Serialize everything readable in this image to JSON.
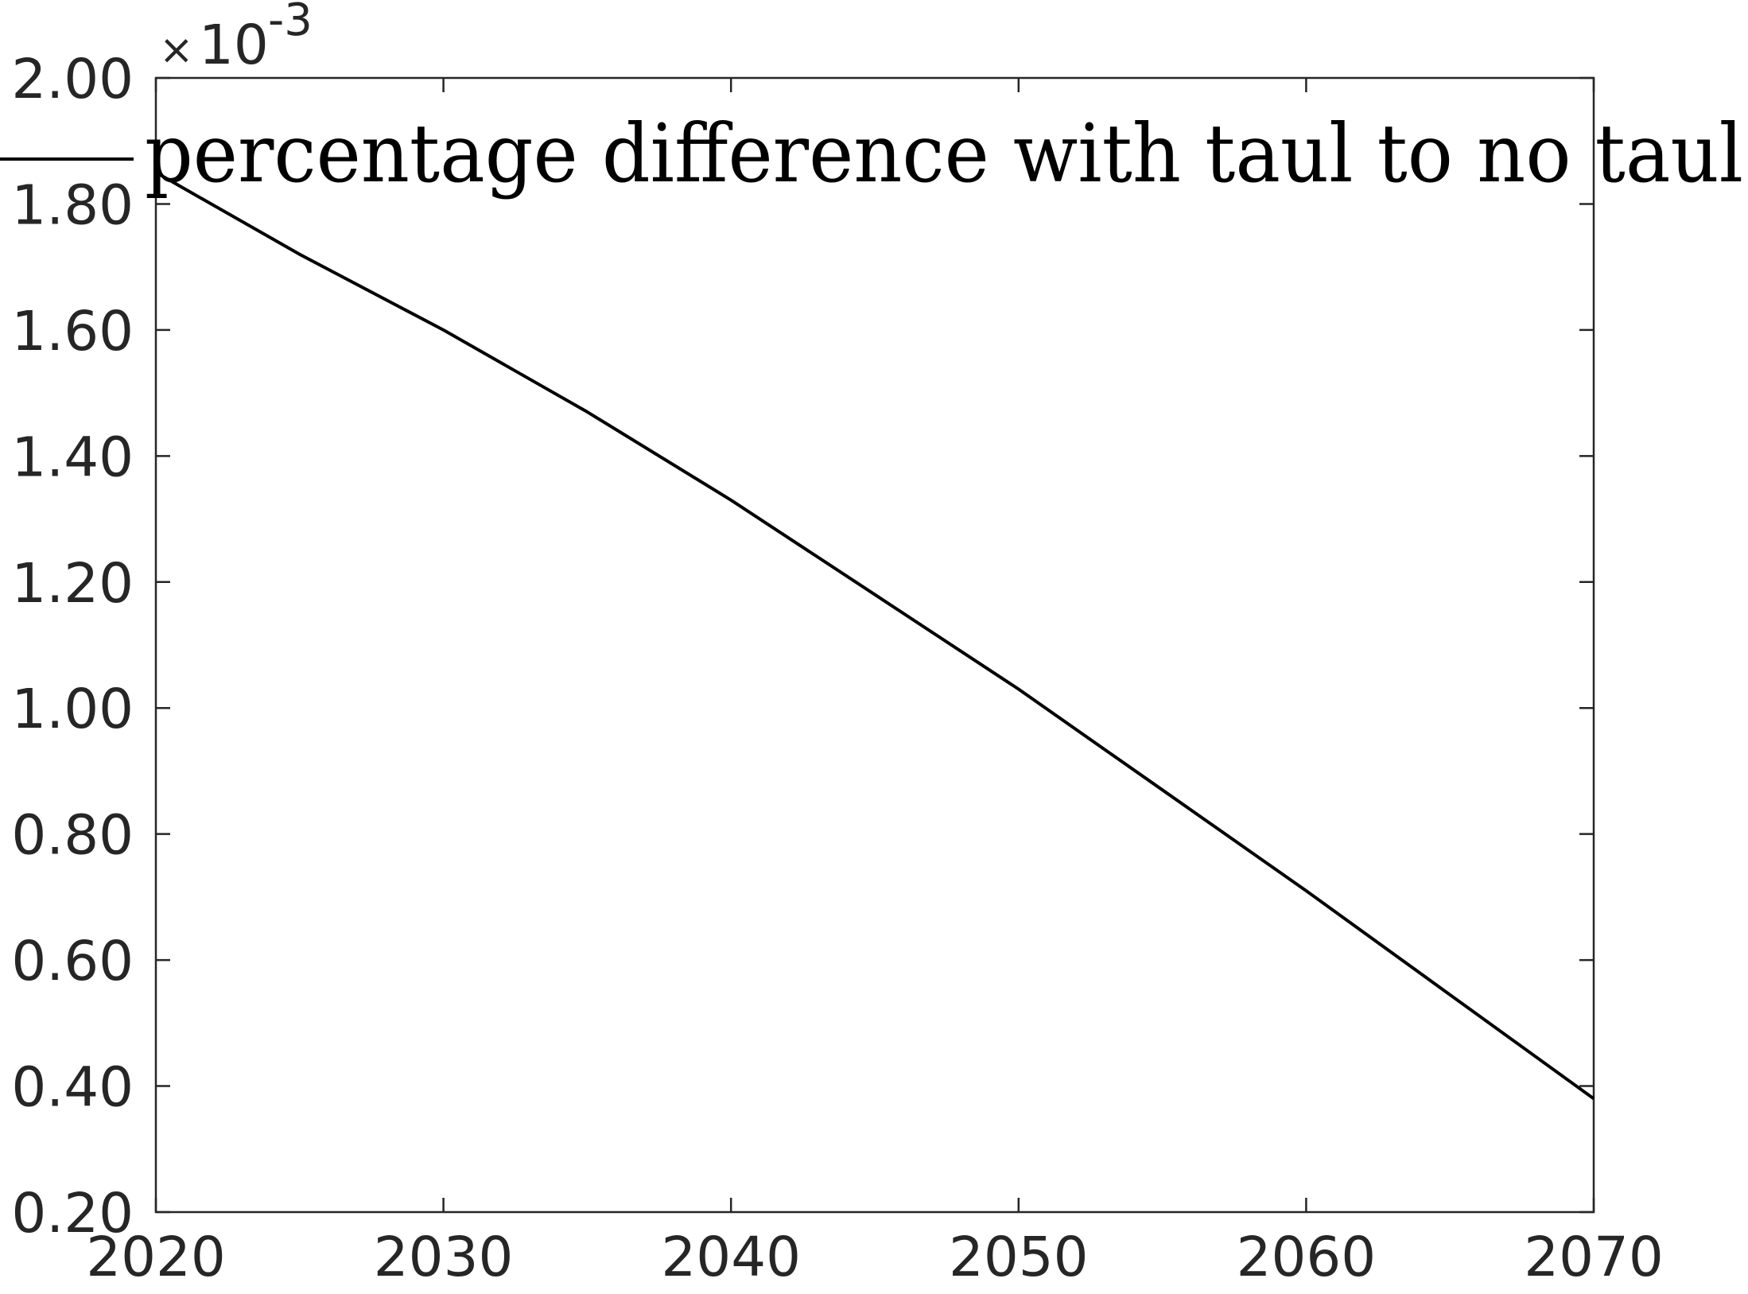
{
  "chart_data": {
    "type": "line",
    "title": "",
    "xlabel": "",
    "ylabel": "",
    "xlim": [
      2020,
      2070
    ],
    "ylim": [
      0.2,
      2.0
    ],
    "x_ticks": [
      "2020",
      "2030",
      "2040",
      "2050",
      "2060",
      "2070"
    ],
    "y_ticks": [
      "0.20",
      "0.40",
      "0.60",
      "0.80",
      "1.00",
      "1.20",
      "1.40",
      "1.60",
      "1.80",
      "2.00"
    ],
    "y_exponent": {
      "times": "×",
      "base": "10",
      "power": "-3"
    },
    "grid": false,
    "legend": {
      "placement": "top",
      "entries": [
        "percentage difference with taul to no taul"
      ]
    },
    "series": [
      {
        "name": "percentage difference with taul to no taul",
        "color": "#000000",
        "x": [
          2020,
          2025,
          2030,
          2035,
          2040,
          2045,
          2050,
          2055,
          2060,
          2065,
          2070
        ],
        "values": [
          1.85,
          1.72,
          1.6,
          1.47,
          1.33,
          1.18,
          1.03,
          0.87,
          0.71,
          0.545,
          0.38
        ]
      }
    ]
  }
}
